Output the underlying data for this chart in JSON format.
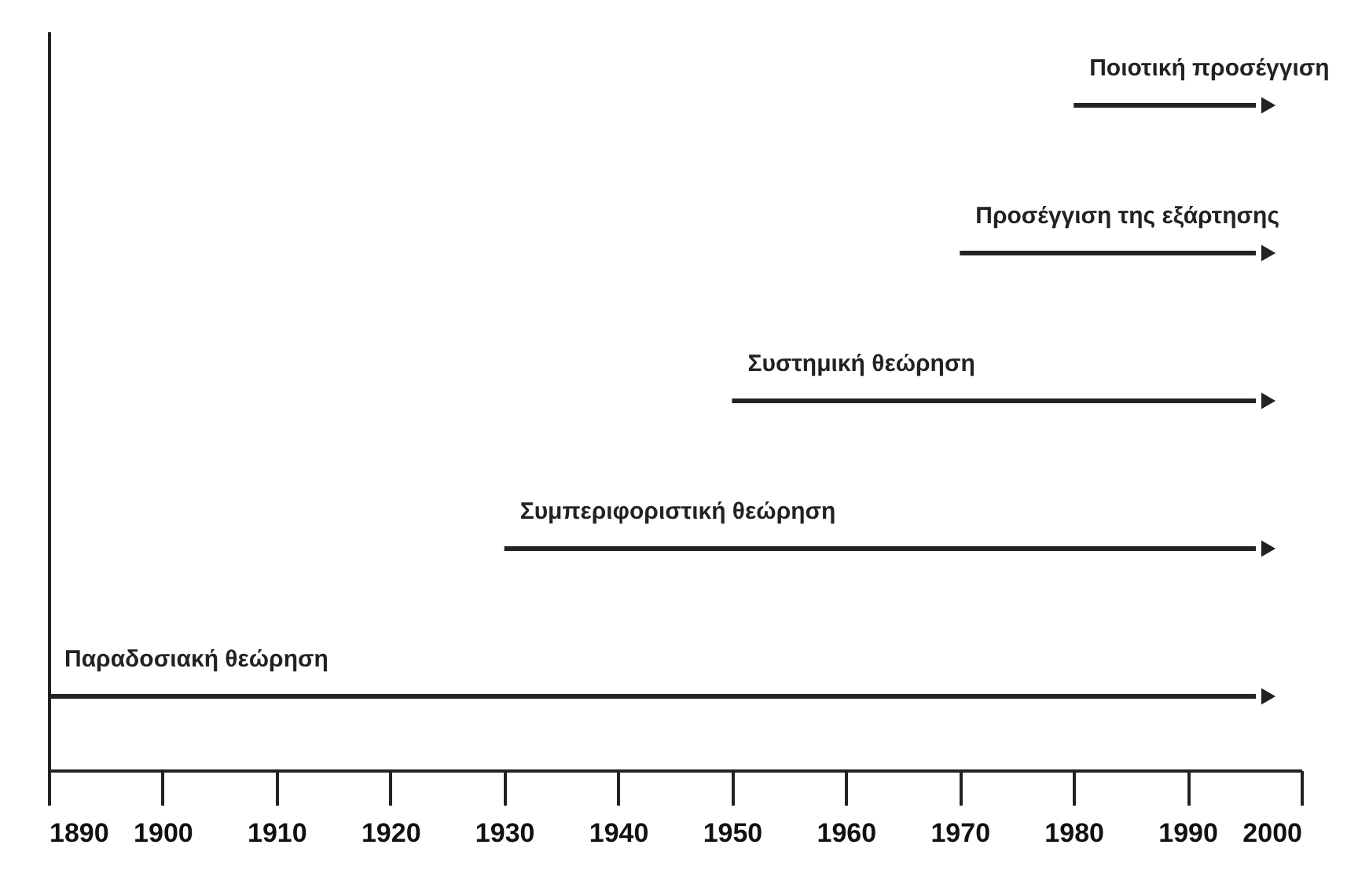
{
  "chart_data": {
    "type": "bar",
    "orientation": "horizontal",
    "categories": [
      "Ποιοτική προσέγγιση",
      "Προσέγγιση της εξάρτησης",
      "Συστημική θεώρηση",
      "Συμπεριφοριστική θεώρηση",
      "Παραδοσιακή θεώρηση"
    ],
    "base": [
      1980,
      1970,
      1950,
      1930,
      1890
    ],
    "values": [
      16,
      26,
      46,
      66,
      106
    ],
    "color": "#222222",
    "xlim": [
      1890,
      2000
    ],
    "xticks": [
      1890,
      1900,
      1910,
      1920,
      1930,
      1940,
      1950,
      1960,
      1970,
      1980,
      1990,
      2000
    ],
    "tick_labels": "x",
    "grid": false
  }
}
